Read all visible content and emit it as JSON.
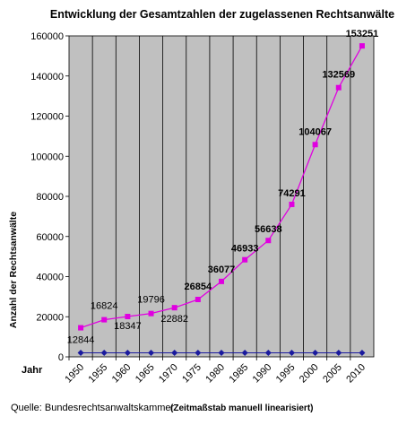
{
  "chart_data": {
    "type": "line",
    "title": "Entwicklung der Gesamtzahlen der zugelassenen Rechtsanwälte",
    "xlabel": "Jahr",
    "ylabel": "Anzahl der Rechtsanwälte",
    "categories": [
      "1950",
      "1955",
      "1960",
      "1965",
      "1970",
      "1975",
      "1980",
      "1985",
      "1990",
      "1995",
      "2000",
      "2005",
      "2010"
    ],
    "y_ticks": [
      "0",
      "20000",
      "40000",
      "60000",
      "80000",
      "100000",
      "120000",
      "140000",
      "160000"
    ],
    "ylim": [
      0,
      160000
    ],
    "grid": "vertical",
    "series": [
      {
        "color": "#e000e0",
        "values": [
          14500,
          18500,
          20100,
          21600,
          24500,
          28600,
          37600,
          48400,
          58000,
          76000,
          105800,
          134200,
          155000
        ]
      },
      {
        "color": "#1a1a9e",
        "values": [
          2000,
          2000,
          2000,
          2000,
          2000,
          2000,
          2000,
          2000,
          2000,
          2000,
          2000,
          2000,
          2000
        ]
      }
    ],
    "data_labels": [
      "12844",
      "16824",
      "18347",
      "19796",
      "22882",
      "26854",
      "36077",
      "46933",
      "56638",
      "74291",
      "104067",
      "132569",
      "153251"
    ],
    "source": "Quelle: Bundesrechtsanwaltskammer",
    "note": "(Zeitmaßstab manuell linearisiert)"
  },
  "colors": {
    "plot_bg": "#c0c0c0",
    "grid": "#000000",
    "accent": "#e000e0",
    "base_series": "#1a1a9e"
  }
}
